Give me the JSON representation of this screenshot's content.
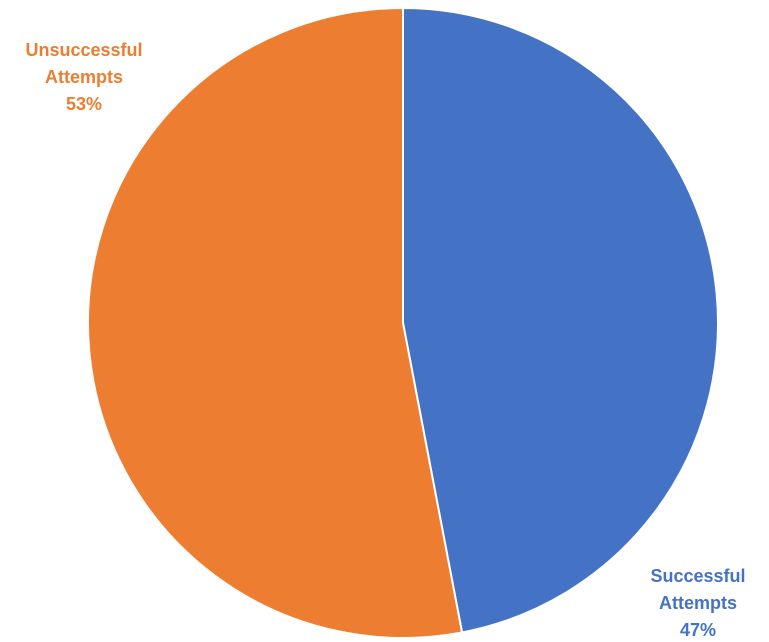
{
  "chart_data": {
    "type": "pie",
    "title": "",
    "categories": [
      "Successful Attempts",
      "Unsuccessful Attempts"
    ],
    "values": [
      47,
      53
    ],
    "labels": [
      {
        "lines": [
          "Successful",
          "Attempts",
          "47%"
        ]
      },
      {
        "lines": [
          "Unsuccessful",
          "Attempts",
          "53%"
        ]
      }
    ],
    "colors": [
      "#4472C4",
      "#ED7D31"
    ],
    "start_angle_deg": 0,
    "direction": "clockwise",
    "legend": "none"
  }
}
